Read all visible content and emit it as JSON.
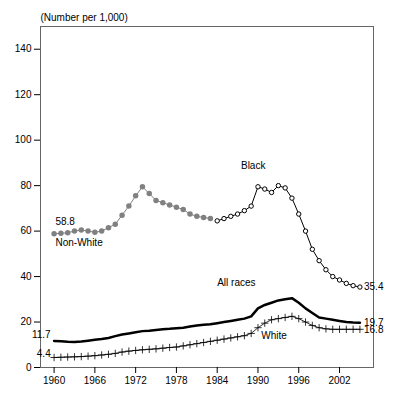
{
  "chart_data": {
    "type": "line",
    "ylabel": "(Number per 1,000)",
    "xlim": [
      1958,
      2007
    ],
    "xticks": [
      1960,
      1966,
      1972,
      1978,
      1984,
      1990,
      1996,
      2002
    ],
    "ylim": [
      0,
      150
    ],
    "yticks": [
      0,
      20,
      40,
      60,
      80,
      100,
      120,
      140
    ],
    "series": [
      {
        "name": "Non-White",
        "color": "#808080",
        "marker": "circle",
        "x": [
          1960,
          1961,
          1962,
          1963,
          1964,
          1965,
          1966,
          1967,
          1968,
          1969,
          1970,
          1971,
          1972,
          1973,
          1974,
          1975,
          1976,
          1977,
          1978,
          1979,
          1980,
          1981,
          1982,
          1983
        ],
        "values": [
          58.8,
          59.0,
          59.3,
          60.0,
          60.5,
          60.0,
          59.5,
          60.0,
          61.5,
          63.0,
          67.0,
          71.0,
          75.5,
          79.5,
          76.5,
          73.5,
          72.5,
          71.5,
          70.5,
          69.5,
          67.5,
          66.5,
          66.0,
          65.5
        ]
      },
      {
        "name": "Black",
        "color": "#000000",
        "marker": "open_circle",
        "x": [
          1984,
          1985,
          1986,
          1987,
          1988,
          1989,
          1990,
          1991,
          1992,
          1993,
          1994,
          1995,
          1996,
          1997,
          1998,
          1999,
          2000,
          2001,
          2002,
          2003,
          2004,
          2005
        ],
        "values": [
          64.5,
          65.5,
          66.5,
          67.5,
          69.0,
          71.0,
          79.5,
          78.5,
          77.0,
          80.0,
          79.0,
          74.5,
          67.5,
          60.0,
          52.0,
          47.0,
          43.0,
          40.0,
          38.5,
          37.0,
          36.0,
          35.4
        ]
      },
      {
        "name": "All races",
        "color": "#000000",
        "marker": "none",
        "x": [
          1960,
          1961,
          1962,
          1963,
          1964,
          1965,
          1966,
          1967,
          1968,
          1969,
          1970,
          1971,
          1972,
          1973,
          1974,
          1975,
          1976,
          1977,
          1978,
          1979,
          1980,
          1981,
          1982,
          1983,
          1984,
          1985,
          1986,
          1987,
          1988,
          1989,
          1990,
          1991,
          1992,
          1993,
          1994,
          1995,
          1996,
          1997,
          1998,
          1999,
          2000,
          2001,
          2002,
          2003,
          2004,
          2005
        ],
        "values": [
          11.7,
          11.5,
          11.3,
          11.2,
          11.4,
          11.8,
          12.2,
          12.5,
          13.0,
          13.8,
          14.5,
          15.0,
          15.5,
          16.0,
          16.2,
          16.5,
          16.8,
          17.0,
          17.3,
          17.5,
          18.0,
          18.5,
          18.8,
          19.0,
          19.5,
          20.0,
          20.5,
          21.0,
          21.5,
          22.5,
          26.0,
          27.5,
          28.5,
          29.5,
          30.0,
          30.5,
          28.5,
          26.0,
          24.0,
          22.0,
          21.5,
          21.0,
          20.5,
          20.0,
          19.8,
          19.7
        ]
      },
      {
        "name": "White",
        "color": "#000000",
        "marker": "plus",
        "x": [
          1960,
          1961,
          1962,
          1963,
          1964,
          1965,
          1966,
          1967,
          1968,
          1969,
          1970,
          1971,
          1972,
          1973,
          1974,
          1975,
          1976,
          1977,
          1978,
          1979,
          1980,
          1981,
          1982,
          1983,
          1984,
          1985,
          1986,
          1987,
          1988,
          1989,
          1990,
          1991,
          1992,
          1993,
          1994,
          1995,
          1996,
          1997,
          1998,
          1999,
          2000,
          2001,
          2002,
          2003,
          2004,
          2005
        ],
        "values": [
          4.4,
          4.5,
          4.6,
          4.7,
          4.8,
          5.0,
          5.2,
          5.5,
          5.8,
          6.2,
          6.8,
          7.2,
          7.5,
          7.8,
          8.0,
          8.2,
          8.5,
          8.8,
          9.0,
          9.5,
          10.0,
          10.5,
          11.0,
          11.5,
          12.0,
          12.5,
          13.0,
          13.5,
          14.0,
          15.0,
          17.5,
          19.5,
          21.0,
          21.5,
          22.0,
          22.5,
          21.5,
          20.0,
          18.5,
          17.5,
          17.0,
          16.8,
          16.8,
          16.8,
          16.8,
          16.8
        ]
      }
    ],
    "annotations": [
      {
        "text": "58.8",
        "x": 1960.2,
        "y": 62.5
      },
      {
        "text": "Non-White",
        "x": 1960.2,
        "y": 56.5
      },
      {
        "text": "Black",
        "x": 1987.5,
        "y": 87.5
      },
      {
        "text": "All races",
        "x": 1984.0,
        "y": 36.0
      },
      {
        "text": "White",
        "x": 1990.5,
        "y": 15.5
      },
      {
        "text": "35.4",
        "x": 2005.6,
        "y": 35.4
      },
      {
        "text": "19.7",
        "x": 2005.6,
        "y": 19.7
      },
      {
        "text": "16.8",
        "x": 2005.6,
        "y": 16.8
      },
      {
        "text": "11.7",
        "x": 1959.5,
        "y": 14.5
      },
      {
        "text": "4.4",
        "x": 1959.5,
        "y": 6.0
      }
    ]
  }
}
